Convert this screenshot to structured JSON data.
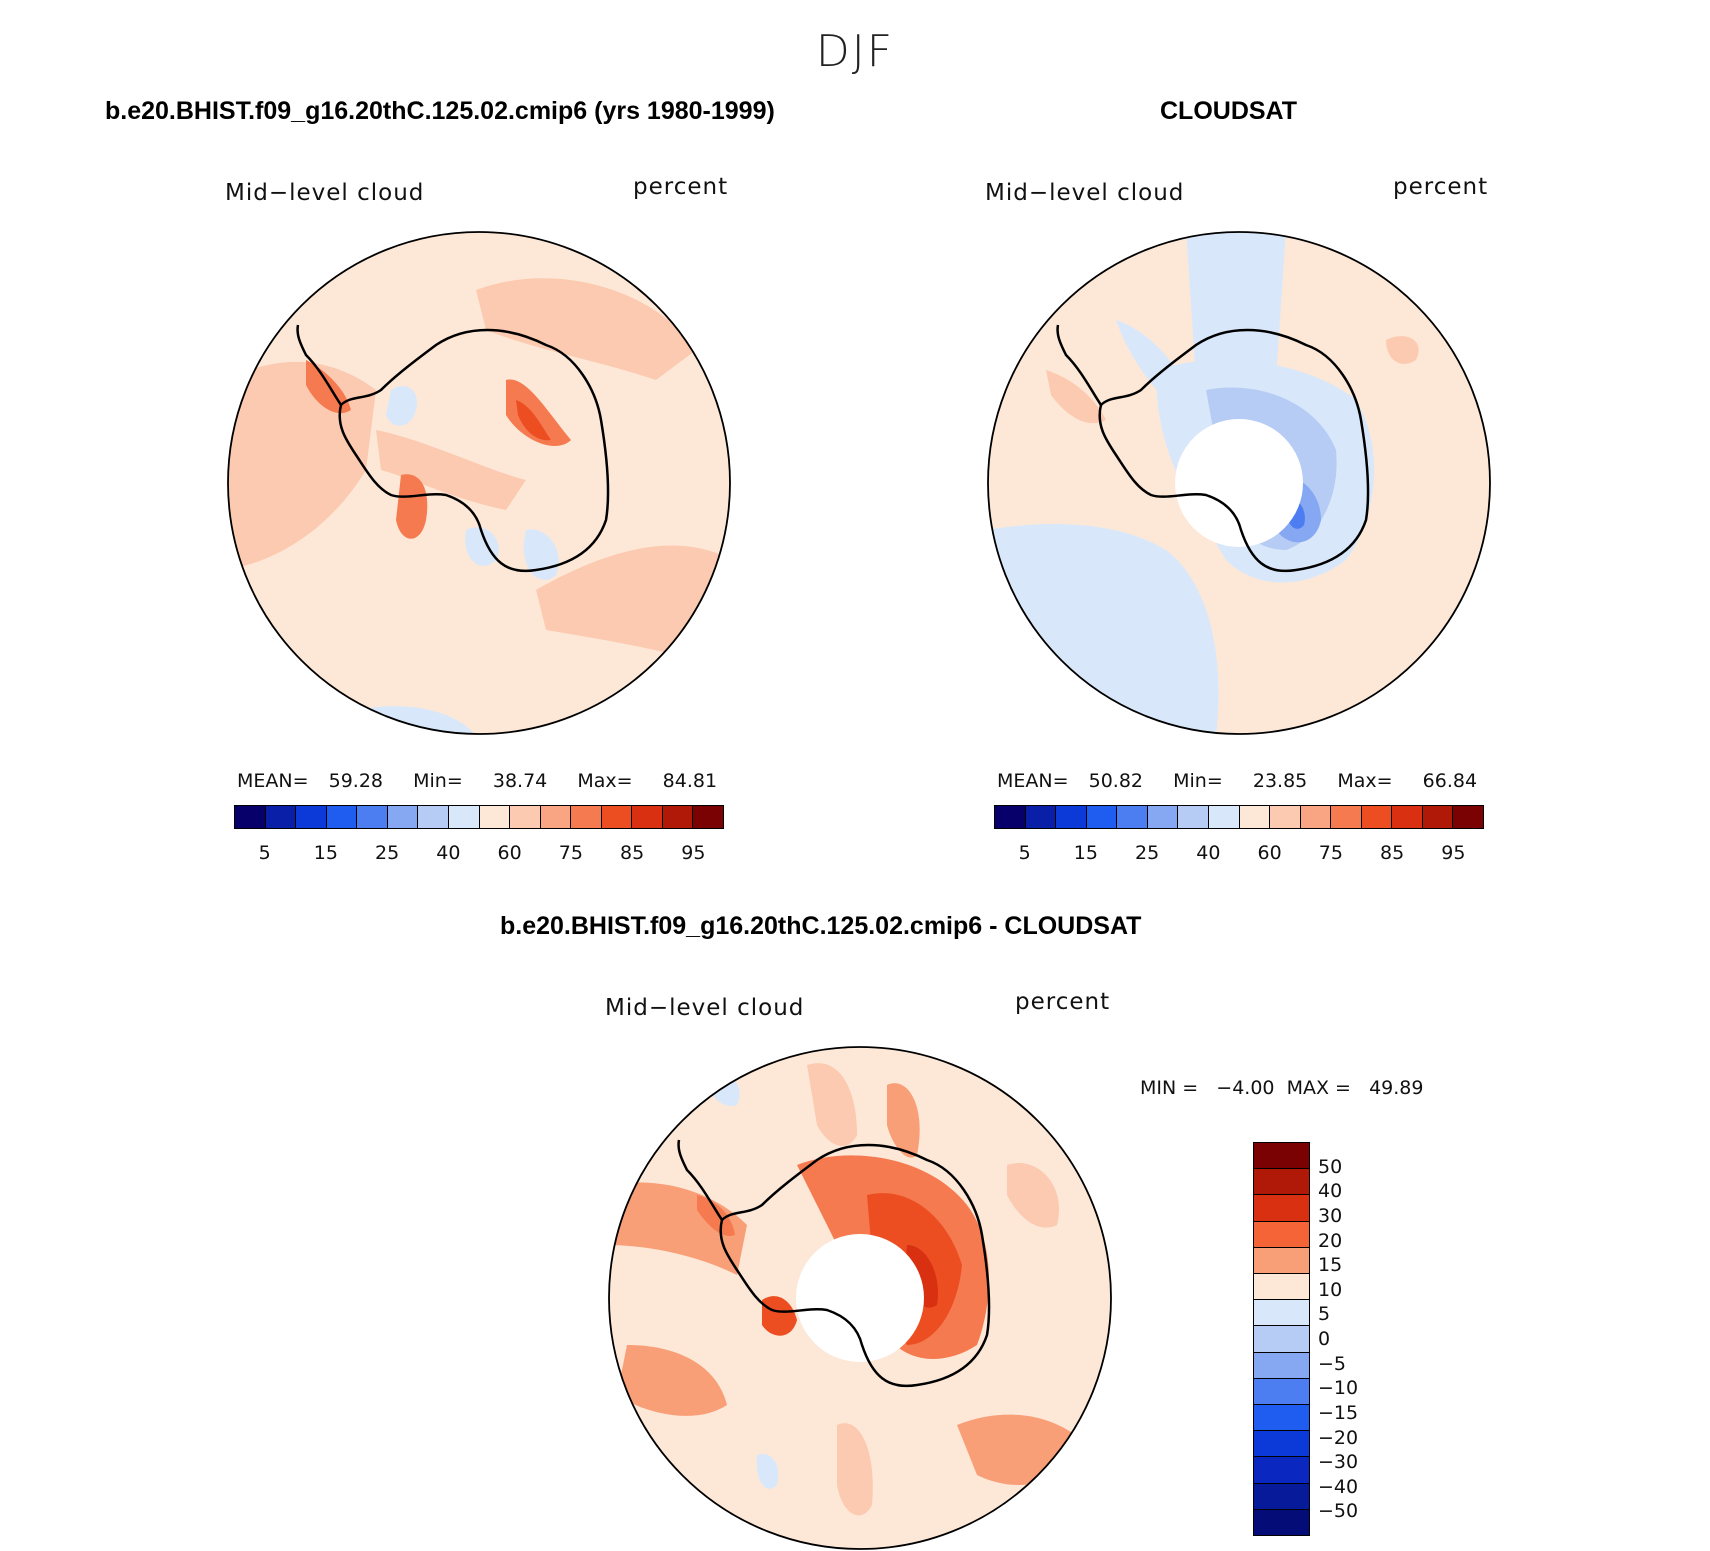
{
  "figure": {
    "season": "DJF"
  },
  "panel_left": {
    "title": "b.e20.BHIST.f09_g16.20thC.125.02.cmip6 (yrs 1980-1999)",
    "variable": "Mid−level cloud",
    "units": "percent",
    "mean_label": "MEAN=",
    "mean": "59.28",
    "min_label": "Min=",
    "min": "38.74",
    "max_label": "Max=",
    "max": "84.81"
  },
  "panel_right": {
    "title": "CLOUDSAT",
    "variable": "Mid−level cloud",
    "units": "percent",
    "mean_label": "MEAN=",
    "mean": "50.82",
    "min_label": "Min=",
    "min": "23.85",
    "max_label": "Max=",
    "max": "66.84"
  },
  "panel_diff": {
    "title": "b.e20.BHIST.f09_g16.20thC.125.02.cmip6 - CLOUDSAT",
    "variable": "Mid−level cloud",
    "units": "percent",
    "minmax_text": "MIN =   −4.00  MAX =   49.89"
  },
  "colorbar_abs": {
    "colors": [
      "#08006a",
      "#0a1fa8",
      "#0b3ad8",
      "#1f5cf0",
      "#4c7ef2",
      "#86a7f2",
      "#b6ccf5",
      "#d8e8fa",
      "#fde8d8",
      "#fccab0",
      "#f9a583",
      "#f57a4f",
      "#ec4e22",
      "#d83010",
      "#b01808",
      "#7a0202"
    ],
    "tick_labels": [
      "5",
      "15",
      "25",
      "40",
      "60",
      "75",
      "85",
      "95"
    ]
  },
  "colorbar_diff": {
    "colors": [
      "#7a0202",
      "#b01808",
      "#d83010",
      "#f46436",
      "#f99f77",
      "#fde8d8",
      "#d8e8fa",
      "#b6ccf5",
      "#86a7f2",
      "#4c7ef2",
      "#1f5cf0",
      "#0b3ad8",
      "#0a28c0",
      "#071a9a",
      "#040c78"
    ],
    "tick_labels": [
      "50",
      "40",
      "30",
      "20",
      "15",
      "10",
      "5",
      "0",
      "−5",
      "−10",
      "−15",
      "−20",
      "−30",
      "−40",
      "−50"
    ]
  },
  "chart_data": [
    {
      "type": "heatmap",
      "title": "b.e20.BHIST.f09_g16.20thC.125.02.cmip6 (yrs 1980-1999)",
      "projection": "south-polar stereographic",
      "variable": "Mid-level cloud",
      "units": "percent",
      "levels": [
        5,
        10,
        15,
        20,
        25,
        30,
        40,
        50,
        60,
        70,
        75,
        80,
        85,
        90,
        95
      ],
      "mean": 59.28,
      "min": 38.74,
      "max": 84.81
    },
    {
      "type": "heatmap",
      "title": "CLOUDSAT",
      "projection": "south-polar stereographic",
      "variable": "Mid-level cloud",
      "units": "percent",
      "levels": [
        5,
        10,
        15,
        20,
        25,
        30,
        40,
        50,
        60,
        70,
        75,
        80,
        85,
        90,
        95
      ],
      "mean": 50.82,
      "min": 23.85,
      "max": 66.84
    },
    {
      "type": "heatmap",
      "title": "b.e20.BHIST.f09_g16.20thC.125.02.cmip6 - CLOUDSAT",
      "projection": "south-polar stereographic",
      "variable": "Mid-level cloud",
      "units": "percent",
      "levels": [
        -50,
        -40,
        -30,
        -20,
        -15,
        -10,
        -5,
        0,
        5,
        10,
        15,
        20,
        30,
        40,
        50
      ],
      "min": -4.0,
      "max": 49.89
    }
  ]
}
